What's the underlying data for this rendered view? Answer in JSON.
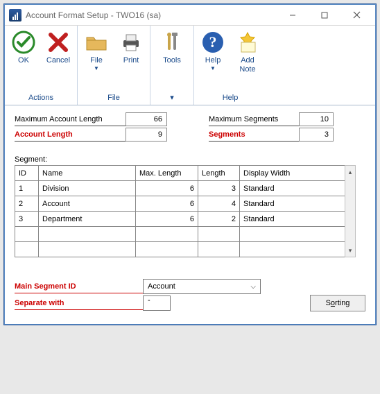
{
  "window": {
    "title": "Account Format Setup  -  TWO16 (sa)"
  },
  "ribbon": {
    "groups": [
      {
        "label": "Actions",
        "items": [
          {
            "key": "ok",
            "label": "OK",
            "icon": "ok-check-icon",
            "dropdown": false
          },
          {
            "key": "cancel",
            "label": "Cancel",
            "icon": "cancel-x-icon",
            "dropdown": false
          }
        ]
      },
      {
        "label": "File",
        "items": [
          {
            "key": "file",
            "label": "File",
            "icon": "folder-icon",
            "dropdown": true
          },
          {
            "key": "print",
            "label": "Print",
            "icon": "printer-icon",
            "dropdown": false
          }
        ]
      },
      {
        "label": "",
        "items": [
          {
            "key": "tools",
            "label": "Tools",
            "icon": "tools-icon",
            "dropdown": true
          }
        ]
      },
      {
        "label": "Help",
        "items": [
          {
            "key": "help",
            "label": "Help",
            "icon": "help-icon",
            "dropdown": true
          },
          {
            "key": "addnote",
            "label": "Add\nNote",
            "icon": "note-icon",
            "dropdown": false
          }
        ]
      }
    ]
  },
  "fields": {
    "maxAccountLength": {
      "label": "Maximum Account Length",
      "value": "66"
    },
    "accountLength": {
      "label": "Account Length",
      "value": "9"
    },
    "maxSegments": {
      "label": "Maximum Segments",
      "value": "10"
    },
    "segments": {
      "label": "Segments",
      "value": "3"
    }
  },
  "segmentTable": {
    "label": "Segment:",
    "columns": [
      "ID",
      "Name",
      "Max. Length",
      "Length",
      "Display Width"
    ],
    "rows": [
      {
        "id": "1",
        "name": "Division",
        "max": "6",
        "len": "3",
        "dw": "Standard"
      },
      {
        "id": "2",
        "name": "Account",
        "max": "6",
        "len": "4",
        "dw": "Standard"
      },
      {
        "id": "3",
        "name": "Department",
        "max": "6",
        "len": "2",
        "dw": "Standard"
      },
      {
        "id": "",
        "name": "",
        "max": "",
        "len": "",
        "dw": ""
      },
      {
        "id": "",
        "name": "",
        "max": "",
        "len": "",
        "dw": ""
      }
    ]
  },
  "bottom": {
    "mainSegmentId": {
      "label": "Main Segment ID",
      "value": "Account"
    },
    "separateWith": {
      "label": "Separate with",
      "value": "-"
    },
    "sortingLabel": "Sorting"
  },
  "colors": {
    "accent": "#1a4a8a",
    "danger": "#c00000"
  }
}
